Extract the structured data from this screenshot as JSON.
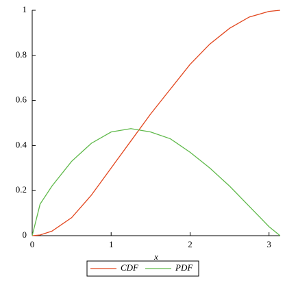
{
  "chart_data": {
    "type": "line",
    "x_label": "x",
    "x": [
      0,
      0.1,
      0.25,
      0.5,
      0.75,
      1,
      1.25,
      1.5,
      1.75,
      2,
      2.25,
      2.5,
      2.75,
      3,
      3.14
    ],
    "series": [
      {
        "name": "CDF",
        "color": "#e2461e",
        "values": [
          0,
          0.003,
          0.02,
          0.08,
          0.18,
          0.3,
          0.42,
          0.54,
          0.65,
          0.76,
          0.85,
          0.92,
          0.97,
          0.995,
          1
        ]
      },
      {
        "name": "PDF",
        "color": "#5fb94a",
        "values": [
          0,
          0.14,
          0.22,
          0.33,
          0.41,
          0.46,
          0.475,
          0.46,
          0.43,
          0.37,
          0.3,
          0.22,
          0.13,
          0.04,
          0
        ]
      }
    ],
    "xlim": [
      0,
      3.14159
    ],
    "ylim": [
      0,
      1
    ],
    "xticks": [
      0,
      1,
      2,
      3
    ],
    "yticks": [
      0,
      0.2,
      0.4,
      0.6,
      0.8,
      1
    ],
    "legend": "bottom"
  }
}
